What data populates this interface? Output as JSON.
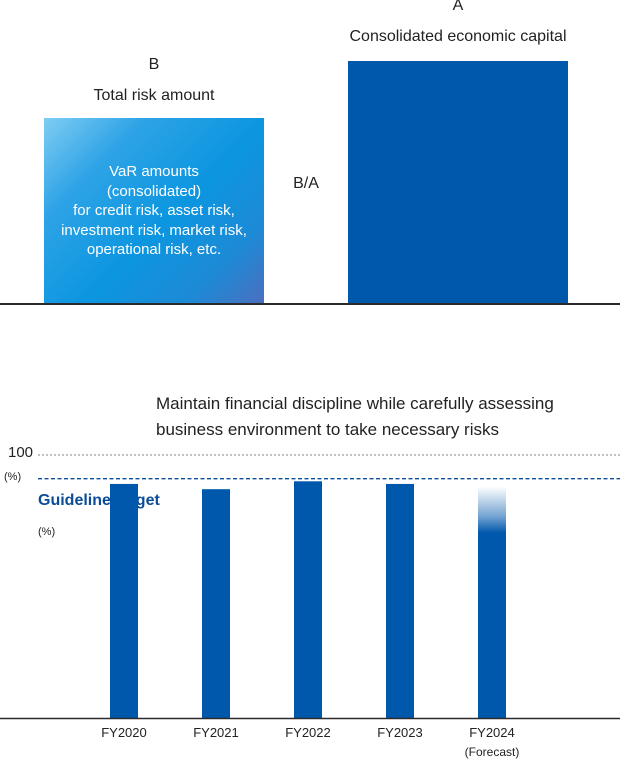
{
  "diagram": {
    "a_letter": "A",
    "a_label": "Consolidated economic capital",
    "b_letter": "B",
    "b_label": "Total risk amount",
    "b_box_lines": [
      "VaR amounts",
      "(consolidated)",
      "for credit risk, asset risk,",
      "investment risk, market risk,",
      "operational risk, etc."
    ],
    "ratio_label": "B/A"
  },
  "message": {
    "line1": "Maintain financial discipline while carefully assessing",
    "line2": "business environment to take necessary risks"
  },
  "chart_data": {
    "type": "bar",
    "categories": [
      "FY2020",
      "FY2021",
      "FY2022",
      "FY2023",
      "FY2024"
    ],
    "category_notes": [
      "",
      "",
      "",
      "",
      "(Forecast)"
    ],
    "values": [
      89,
      87,
      90,
      89,
      88
    ],
    "ylim": [
      0,
      100
    ],
    "y_max_label": "100",
    "unit_label": "(%)",
    "guideline": {
      "label": "Guideline target",
      "unit_label": "(%)",
      "value": 91
    },
    "bar_color": "#0058ac",
    "guideline_color": "#0b4c98",
    "forecast_fade": [
      false,
      false,
      false,
      false,
      true
    ]
  }
}
